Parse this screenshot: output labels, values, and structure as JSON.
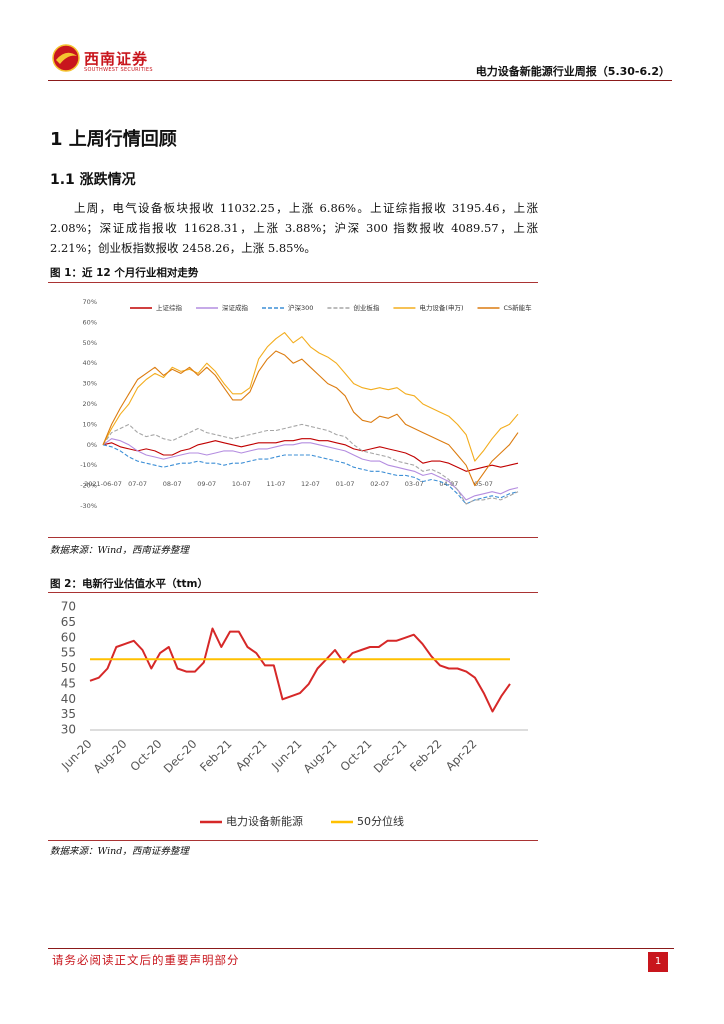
{
  "header": {
    "logo": "西南证券",
    "logo_en": "SOUTHWEST SECURITIES",
    "title": "电力设备新能源行业周报（5.30-6.2）"
  },
  "section_heading": "1 上周行情回顾",
  "subsection_heading": "1.1 涨跌情况",
  "paragraph": "上周，电气设备板块报收 11032.25，上涨 6.86%。上证综指报收 3195.46，上涨 2.08%；深证成指报收 11628.31，上涨 3.88%；沪深 300 指数报收 4089.57，上涨 2.21%；创业板指数报收 2458.26，上涨 5.85%。",
  "figures": [
    {
      "caption": "图 1：近 12 个月行业相对走势",
      "source": "数据来源：Wind，西南证券整理"
    },
    {
      "caption": "图 2：电新行业估值水平（ttm）",
      "source": "数据来源：Wind，西南证券整理"
    }
  ],
  "footer": {
    "notice": "请务必阅读正文后的重要声明部分",
    "page": "1"
  },
  "chart_data": [
    {
      "type": "line",
      "categories": [
        "2021-06-07",
        null,
        null,
        null,
        "07-07",
        null,
        null,
        null,
        "08-07",
        null,
        null,
        null,
        "09-07",
        null,
        null,
        null,
        "10-07",
        null,
        null,
        null,
        "11-07",
        null,
        null,
        null,
        "12-07",
        null,
        null,
        null,
        "01-07",
        null,
        null,
        null,
        "02-07",
        null,
        null,
        null,
        "03-07",
        null,
        null,
        null,
        "04-07",
        null,
        null,
        null,
        "05-07",
        null,
        null,
        null,
        null
      ],
      "ylim": [
        -30,
        70
      ],
      "yticks": [
        {
          "value": 70,
          "label": "70%"
        },
        {
          "value": 60,
          "label": "60%"
        },
        {
          "value": 50,
          "label": "50%"
        },
        {
          "value": 40,
          "label": "40%"
        },
        {
          "value": 30,
          "label": "30%"
        },
        {
          "value": 20,
          "label": "20%"
        },
        {
          "value": 10,
          "label": "10%"
        },
        {
          "value": 0,
          "label": "0%"
        },
        {
          "value": -10,
          "label": "-10%"
        },
        {
          "value": -20,
          "label": "-20%"
        },
        {
          "value": -30,
          "label": "-30%"
        }
      ],
      "legend": "top",
      "series": [
        {
          "name": "上证综指",
          "color": "#c00000",
          "values": [
            0,
            1,
            -1,
            -2,
            -3,
            -2,
            -3,
            -5,
            -5,
            -3,
            -2,
            0,
            1,
            2,
            1,
            0,
            -1,
            0,
            1,
            1,
            1,
            2,
            2,
            3,
            3,
            2,
            2,
            1,
            0,
            -2,
            -3,
            -2,
            -1,
            -2,
            -3,
            -4,
            -6,
            -9,
            -8,
            -8,
            -9,
            -11,
            -13,
            -12,
            -11,
            -10,
            -11,
            -10,
            -9
          ]
        },
        {
          "name": "深证成指",
          "color": "#b48de0",
          "values": [
            0,
            3,
            2,
            0,
            -3,
            -5,
            -6,
            -7,
            -6,
            -5,
            -4,
            -4,
            -5,
            -4,
            -3,
            -3,
            -4,
            -3,
            -2,
            -2,
            -1,
            0,
            0,
            1,
            1,
            0,
            -1,
            -2,
            -3,
            -5,
            -7,
            -8,
            -8,
            -10,
            -11,
            -12,
            -13,
            -15,
            -14,
            -16,
            -18,
            -22,
            -27,
            -25,
            -24,
            -23,
            -24,
            -22,
            -21
          ]
        },
        {
          "name": "沪深300",
          "color": "#3d8fd6",
          "dashed": true,
          "values": [
            0,
            -1,
            -3,
            -6,
            -8,
            -9,
            -10,
            -11,
            -10,
            -9,
            -9,
            -8,
            -9,
            -9,
            -10,
            -9,
            -9,
            -8,
            -7,
            -7,
            -6,
            -5,
            -5,
            -5,
            -5,
            -6,
            -7,
            -8,
            -9,
            -11,
            -12,
            -13,
            -13,
            -14,
            -15,
            -15,
            -16,
            -18,
            -17,
            -18,
            -20,
            -24,
            -29,
            -27,
            -26,
            -25,
            -26,
            -24,
            -23
          ]
        },
        {
          "name": "创业板指",
          "color": "#a6a6a6",
          "dashed": true,
          "values": [
            0,
            6,
            8,
            10,
            6,
            4,
            5,
            3,
            2,
            4,
            6,
            8,
            6,
            5,
            4,
            3,
            4,
            5,
            6,
            7,
            7,
            8,
            9,
            10,
            9,
            8,
            7,
            5,
            4,
            0,
            -3,
            -4,
            -5,
            -6,
            -8,
            -9,
            -10,
            -13,
            -12,
            -14,
            -17,
            -22,
            -29,
            -27,
            -27,
            -26,
            -27,
            -25,
            -23
          ]
        },
        {
          "name": "电力设备(申万)",
          "color": "#f3ad1e",
          "values": [
            0,
            8,
            15,
            20,
            28,
            32,
            35,
            33,
            38,
            36,
            37,
            35,
            40,
            36,
            30,
            25,
            25,
            28,
            42,
            48,
            52,
            55,
            50,
            53,
            48,
            45,
            43,
            40,
            35,
            30,
            28,
            27,
            28,
            27,
            28,
            25,
            24,
            20,
            18,
            16,
            14,
            10,
            5,
            -8,
            -3,
            3,
            8,
            10,
            15
          ]
        },
        {
          "name": "CS新能车",
          "color": "#dc7c10",
          "values": [
            0,
            10,
            18,
            25,
            32,
            35,
            38,
            34,
            37,
            35,
            38,
            34,
            38,
            34,
            28,
            22,
            22,
            26,
            36,
            42,
            46,
            44,
            40,
            42,
            38,
            34,
            30,
            28,
            24,
            16,
            12,
            11,
            14,
            13,
            15,
            10,
            8,
            6,
            4,
            2,
            0,
            -5,
            -10,
            -20,
            -14,
            -8,
            -4,
            0,
            6
          ]
        }
      ]
    },
    {
      "type": "line",
      "categories": [
        "Jun-20",
        null,
        null,
        null,
        "Aug-20",
        null,
        null,
        null,
        "Oct-20",
        null,
        null,
        null,
        "Dec-20",
        null,
        null,
        null,
        "Feb-21",
        null,
        null,
        null,
        "Apr-21",
        null,
        null,
        null,
        "Jun-21",
        null,
        null,
        null,
        "Aug-21",
        null,
        null,
        null,
        "Oct-21",
        null,
        null,
        null,
        "Dec-21",
        null,
        null,
        null,
        "Feb-22",
        null,
        null,
        null,
        "Apr-22",
        null,
        null,
        null,
        null
      ],
      "ylim": [
        30,
        70
      ],
      "yticks": [
        30,
        35,
        40,
        45,
        50,
        55,
        60,
        65,
        70
      ],
      "legend": "bottom",
      "series": [
        {
          "name": "电力设备新能源",
          "color": "#d62828",
          "values": [
            46,
            47,
            50,
            57,
            58,
            59,
            56,
            50,
            55,
            57,
            50,
            49,
            49,
            52,
            63,
            57,
            62,
            62,
            57,
            55,
            51,
            51,
            40,
            41,
            42,
            45,
            50,
            53,
            56,
            52,
            55,
            56,
            57,
            57,
            59,
            59,
            60,
            61,
            58,
            54,
            51,
            50,
            50,
            49,
            47,
            42,
            36,
            41,
            45
          ]
        },
        {
          "name": "50分位线",
          "color": "#ffc000",
          "values": [
            53,
            53,
            53,
            53,
            53,
            53,
            53,
            53,
            53,
            53,
            53,
            53,
            53,
            53,
            53,
            53,
            53,
            53,
            53,
            53,
            53,
            53,
            53,
            53,
            53,
            53,
            53,
            53,
            53,
            53,
            53,
            53,
            53,
            53,
            53,
            53,
            53,
            53,
            53,
            53,
            53,
            53,
            53,
            53,
            53,
            53,
            53,
            53,
            53
          ]
        }
      ]
    }
  ]
}
